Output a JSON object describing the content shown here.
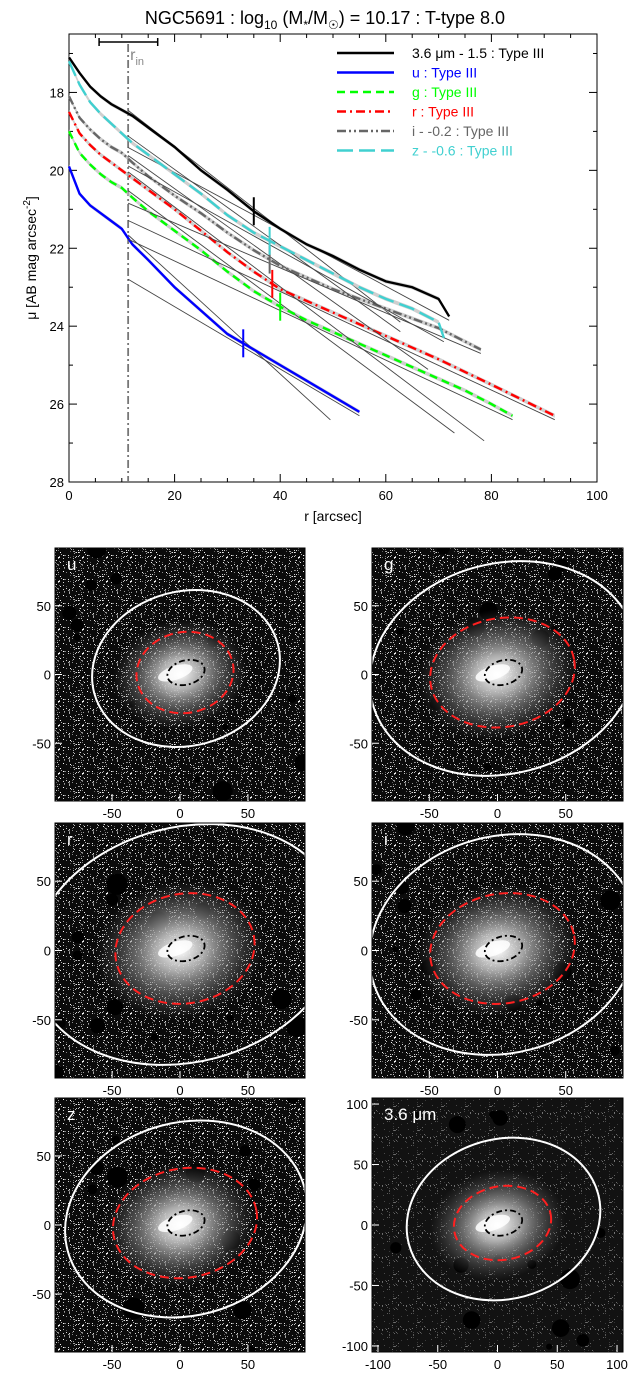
{
  "chart_data": [
    {
      "type": "line",
      "title_parts": {
        "galaxy": "NGC5691",
        "sep1": " : log",
        "sub10": "10",
        "mass": " (M",
        "star": "*",
        "slash": "/M",
        "sun": "☉",
        "value": ") = 10.17 : T-type 8.0"
      },
      "xlabel": "r [arcsec]",
      "ylabel_parts": {
        "main": "μ [AB mag arcsec",
        "sup": "-2",
        "close": "]"
      },
      "xlim": [
        0,
        100
      ],
      "ylim": [
        28,
        16.5
      ],
      "xticks": [
        "0",
        "20",
        "40",
        "60",
        "80",
        "100"
      ],
      "xtick_values": [
        0,
        20,
        40,
        60,
        80,
        100
      ],
      "yticks": [
        "18",
        "20",
        "22",
        "24",
        "26",
        "28"
      ],
      "ytick_values": [
        18,
        20,
        22,
        24,
        26,
        28
      ],
      "r_in": {
        "label": "r",
        "sub": "in",
        "value": 11.2,
        "err": [
          5.7,
          16.8
        ]
      },
      "grid": false,
      "legend_position": "top-right",
      "series": [
        {
          "name": "3.6 μm - 1.5 : Type III",
          "color": "#000000",
          "dash": "solid",
          "x": [
            0,
            2,
            4,
            6,
            8,
            10,
            12,
            15,
            20,
            25,
            30,
            35,
            40,
            45,
            50,
            55,
            60,
            65,
            70,
            72
          ],
          "y": [
            17.1,
            17.5,
            17.85,
            18.1,
            18.3,
            18.45,
            18.6,
            18.9,
            19.4,
            20.0,
            20.5,
            21.05,
            21.5,
            21.9,
            22.2,
            22.55,
            22.85,
            23.0,
            23.3,
            23.75
          ],
          "break_x": 35
        },
        {
          "name": "u : Type III",
          "color": "#0000ff",
          "dash": "solid",
          "x": [
            0,
            2,
            4,
            6,
            8,
            10,
            12,
            15,
            20,
            25,
            30,
            35,
            40,
            45,
            50,
            55
          ],
          "y": [
            19.9,
            20.6,
            20.9,
            21.1,
            21.3,
            21.5,
            21.9,
            22.3,
            23.0,
            23.6,
            24.2,
            24.6,
            25.0,
            25.4,
            25.8,
            26.2
          ],
          "break_x": 33
        },
        {
          "name": "g : Type III",
          "color": "#00ff00",
          "dash": "dashed",
          "x": [
            0,
            2,
            4,
            6,
            8,
            10,
            12,
            15,
            20,
            25,
            30,
            35,
            40,
            45,
            50,
            55,
            60,
            65,
            70,
            75,
            80,
            84
          ],
          "y": [
            19.0,
            19.55,
            19.85,
            20.1,
            20.3,
            20.45,
            20.7,
            21.05,
            21.55,
            22.05,
            22.6,
            23.1,
            23.5,
            23.85,
            24.15,
            24.45,
            24.75,
            25.05,
            25.35,
            25.65,
            26.0,
            26.3
          ],
          "break_x": 40
        },
        {
          "name": "r : Type III",
          "color": "#ff0000",
          "dash": "dashdot",
          "x": [
            0,
            2,
            4,
            6,
            8,
            10,
            12,
            15,
            20,
            25,
            30,
            35,
            40,
            45,
            50,
            60,
            70,
            80,
            92
          ],
          "y": [
            18.5,
            19.05,
            19.35,
            19.6,
            19.8,
            20.0,
            20.2,
            20.5,
            21.0,
            21.55,
            22.1,
            22.6,
            23.05,
            23.35,
            23.65,
            24.25,
            24.85,
            25.5,
            26.3
          ],
          "break_x": 38.5
        },
        {
          "name": "i - -0.2 : Type III",
          "color": "#666666",
          "dash": "dashdotdot",
          "x": [
            0,
            2,
            4,
            6,
            8,
            10,
            12,
            15,
            20,
            25,
            30,
            35,
            40,
            45,
            50,
            60,
            70,
            78
          ],
          "y": [
            18.1,
            18.65,
            18.95,
            19.2,
            19.4,
            19.55,
            19.8,
            20.15,
            20.65,
            21.1,
            21.6,
            22.05,
            22.45,
            22.75,
            23.05,
            23.55,
            24.05,
            24.6
          ],
          "break_x": 38
        },
        {
          "name": "z - -0.6 : Type III",
          "color": "#40d0d0",
          "dash": "longdash",
          "x": [
            0,
            2,
            4,
            6,
            8,
            10,
            12,
            15,
            20,
            25,
            30,
            35,
            40,
            45,
            50,
            55,
            60,
            65,
            70,
            71
          ],
          "y": [
            17.2,
            17.8,
            18.25,
            18.55,
            18.8,
            19.05,
            19.3,
            19.6,
            20.1,
            20.6,
            21.15,
            21.6,
            21.95,
            22.3,
            22.65,
            23.0,
            23.3,
            23.55,
            23.9,
            24.3
          ],
          "break_x": 38
        }
      ]
    },
    {
      "type": "image",
      "panels": [
        {
          "label": "u",
          "xticks": [
            "-50",
            "0",
            "50"
          ],
          "xtick_values": [
            -50,
            0,
            50
          ],
          "yticks": [
            "50",
            "0",
            "-50"
          ],
          "ytick_values": [
            50,
            0,
            -50
          ],
          "extent": 92,
          "outer": [
            0.76,
            0.61
          ],
          "mid": [
            0.39,
            0.32
          ],
          "inner": [
            0.12,
            0.08
          ],
          "bright": 0.8
        },
        {
          "label": "g",
          "xticks": [
            "-50",
            "0",
            "50"
          ],
          "xtick_values": [
            -50,
            0,
            50
          ],
          "yticks": [
            "50",
            "0",
            "-50"
          ],
          "ytick_values": [
            50,
            0,
            -50
          ],
          "extent": 92,
          "outer": [
            1.08,
            0.83
          ],
          "mid": [
            0.58,
            0.43
          ],
          "inner": [
            0.12,
            0.08
          ],
          "bright": 0.95
        },
        {
          "label": "r",
          "xticks": [
            "-50",
            "0",
            "50"
          ],
          "xtick_values": [
            -50,
            0,
            50
          ],
          "yticks": [
            "50",
            "0",
            "-50"
          ],
          "ytick_values": [
            50,
            0,
            -50
          ],
          "extent": 92,
          "outer": [
            1.26,
            0.92
          ],
          "mid": [
            0.56,
            0.43
          ],
          "inner": [
            0.12,
            0.08
          ],
          "bright": 1.0
        },
        {
          "label": "i",
          "xticks": [
            "-50",
            "0",
            "50"
          ],
          "xtick_values": [
            -50,
            0,
            50
          ],
          "yticks": [
            "50",
            "0",
            "-50"
          ],
          "ytick_values": [
            50,
            0,
            -50
          ],
          "extent": 92,
          "outer": [
            1.08,
            0.85
          ],
          "mid": [
            0.58,
            0.43
          ],
          "inner": [
            0.12,
            0.08
          ],
          "bright": 0.95
        },
        {
          "label": "z",
          "xticks": [
            "-50",
            "0",
            "50"
          ],
          "xtick_values": [
            -50,
            0,
            50
          ],
          "yticks": [
            "50",
            "0",
            "-50"
          ],
          "ytick_values": [
            50,
            0,
            -50
          ],
          "extent": 92,
          "outer": [
            0.98,
            0.76
          ],
          "mid": [
            0.58,
            0.43
          ],
          "inner": [
            0.12,
            0.08
          ],
          "bright": 0.9
        },
        {
          "label": "3.6 μm",
          "xticks": [
            "-100",
            "-50",
            "0",
            "50",
            "100"
          ],
          "xtick_values": [
            -100,
            -50,
            0,
            50,
            100
          ],
          "yticks": [
            "100",
            "50",
            "0",
            "-50",
            "-100"
          ],
          "ytick_values": [
            100,
            50,
            0,
            -50,
            -100
          ],
          "extent": 105,
          "outer": [
            0.78,
            0.63
          ],
          "mid": [
            0.39,
            0.29
          ],
          "inner": [
            0.12,
            0.08
          ],
          "bright": 0.8,
          "darkbg": true
        }
      ]
    }
  ]
}
